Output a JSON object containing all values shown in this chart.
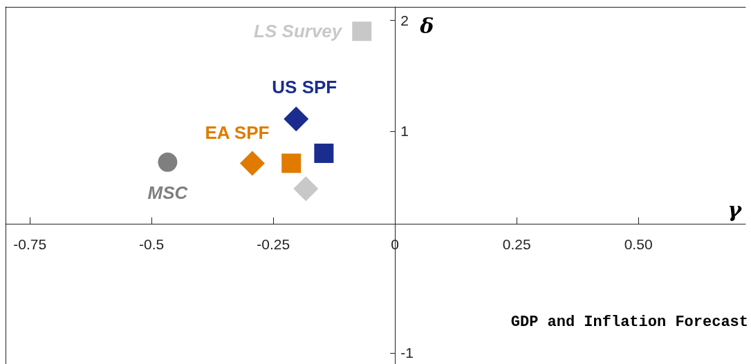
{
  "chart_data": {
    "type": "scatter",
    "xlabel": "γ",
    "ylabel": "δ",
    "annotations": [
      "GDP and Inflation Forecast"
    ],
    "xlim": [
      -0.8,
      0.72
    ],
    "ylim": [
      -1.1,
      2.12
    ],
    "xticks": [
      -0.75,
      -0.5,
      -0.25,
      0,
      0.25,
      {
        "value": 0.5,
        "label": "0.50"
      }
    ],
    "yticks": [
      -1,
      1,
      2
    ],
    "grid": false,
    "legend": false,
    "series": [
      {
        "name": "MSC",
        "color": "#7f7f7f",
        "marker": "circle",
        "x": [
          -0.467
        ],
        "values": [
          0.72
        ]
      },
      {
        "name": "EA SPF",
        "color": "#e07b00",
        "marker": "diamond",
        "x": [
          -0.293
        ],
        "values": [
          0.71
        ]
      },
      {
        "color": "#e07b00",
        "marker": "square",
        "x": [
          -0.213
        ],
        "values": [
          0.71
        ]
      },
      {
        "name": "US SPF",
        "color": "#1a2d8f",
        "marker": "diamond",
        "x": [
          -0.203
        ],
        "values": [
          1.11
        ]
      },
      {
        "color": "#1a2d8f",
        "marker": "square",
        "x": [
          -0.146
        ],
        "values": [
          0.8
        ]
      },
      {
        "color": "#c8c8c8",
        "marker": "diamond",
        "x": [
          -0.183
        ],
        "values": [
          0.48
        ]
      },
      {
        "name": "LS Survey",
        "color": "#c8c8c8",
        "marker": "square",
        "x": [
          -0.068
        ],
        "values": [
          1.9
        ]
      }
    ]
  }
}
